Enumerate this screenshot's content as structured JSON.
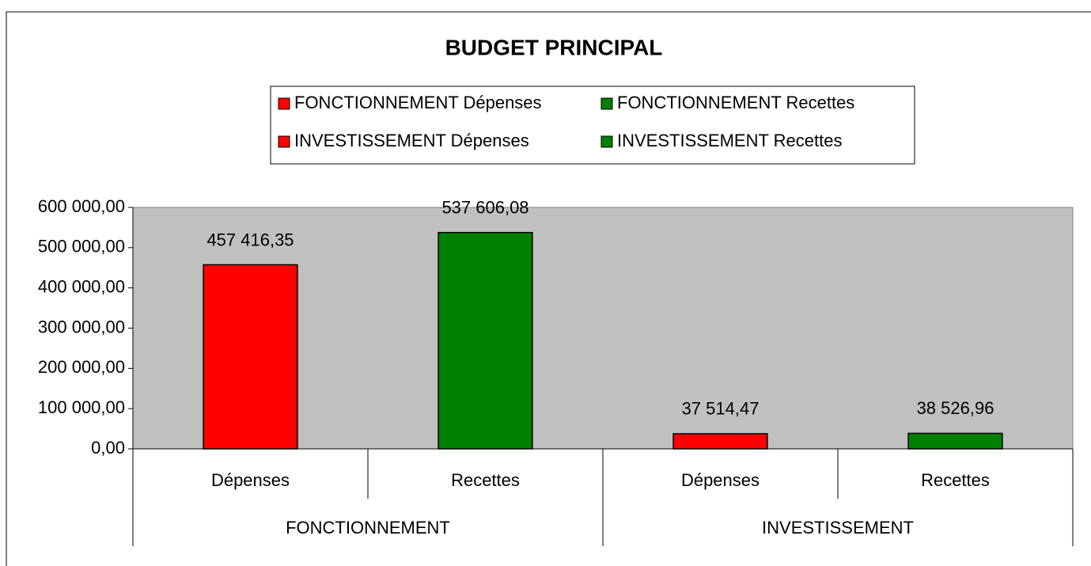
{
  "chart_data": {
    "type": "bar",
    "title": "BUDGET PRINCIPAL",
    "categories": [
      "Dépenses",
      "Recettes",
      "Dépenses",
      "Recettes"
    ],
    "groups": [
      "FONCTIONNEMENT",
      "INVESTISSEMENT"
    ],
    "series": [
      {
        "name": "FONCTIONNEMENT Dépenses",
        "color": "#ff0000",
        "values": [
          457416.35,
          null,
          null,
          null
        ],
        "value_labels": [
          "457 416,35",
          null,
          null,
          null
        ]
      },
      {
        "name": "FONCTIONNEMENT Recettes",
        "color": "#008000",
        "values": [
          null,
          537606.08,
          null,
          null
        ],
        "value_labels": [
          null,
          "537 606,08",
          null,
          null
        ]
      },
      {
        "name": "INVESTISSEMENT Dépenses",
        "color": "#ff0000",
        "values": [
          null,
          null,
          37514.47,
          null
        ],
        "value_labels": [
          null,
          null,
          "37 514,47",
          null
        ]
      },
      {
        "name": "INVESTISSEMENT Recettes",
        "color": "#008000",
        "values": [
          null,
          null,
          null,
          38526.96
        ],
        "value_labels": [
          null,
          null,
          null,
          "38 526,96"
        ]
      }
    ],
    "ylim": [
      0,
      600000
    ],
    "yticks": [
      {
        "value": 0,
        "label": "0,00"
      },
      {
        "value": 100000,
        "label": "100 000,00"
      },
      {
        "value": 200000,
        "label": "200 000,00"
      },
      {
        "value": 300000,
        "label": "300 000,00"
      },
      {
        "value": 400000,
        "label": "400 000,00"
      },
      {
        "value": 500000,
        "label": "500 000,00"
      },
      {
        "value": 600000,
        "label": "600 000,00"
      }
    ],
    "plot_background": "#c0c0c0"
  }
}
